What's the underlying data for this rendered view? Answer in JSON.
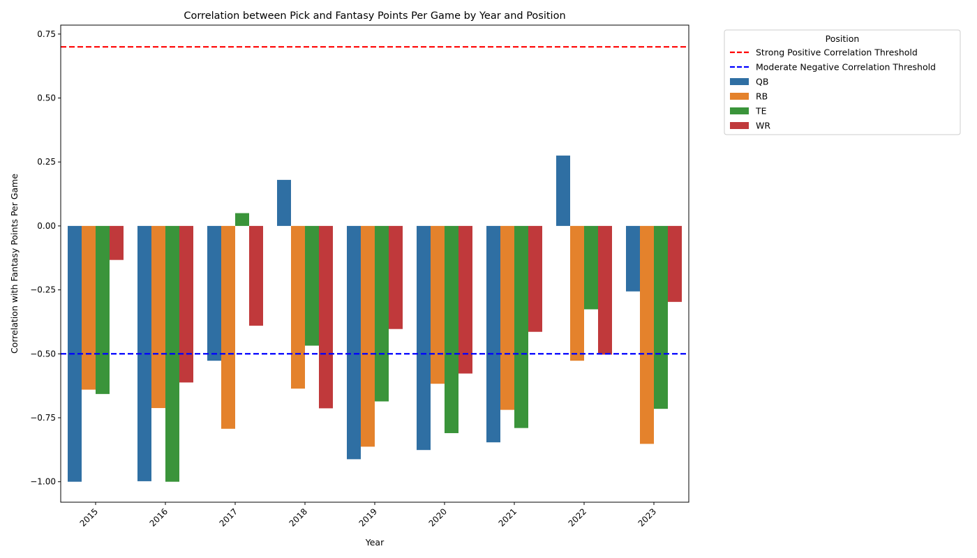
{
  "chart_data": {
    "type": "bar",
    "title": "Correlation between Pick and Fantasy Points Per Game by Year and Position",
    "xlabel": "Year",
    "ylabel": "Correlation with Fantasy Points Per Game",
    "ylim": [
      -1.08,
      0.785
    ],
    "grid": false,
    "categories": [
      "2015",
      "2016",
      "2017",
      "2018",
      "2019",
      "2020",
      "2021",
      "2022",
      "2023"
    ],
    "y_ticks": [
      {
        "value": 0.75,
        "label": "0.75"
      },
      {
        "value": 0.5,
        "label": "0.50"
      },
      {
        "value": 0.25,
        "label": "0.25"
      },
      {
        "value": 0.0,
        "label": "0.00"
      },
      {
        "value": -0.25,
        "label": "−0.25"
      },
      {
        "value": -0.5,
        "label": "−0.50"
      },
      {
        "value": -0.75,
        "label": "−0.75"
      },
      {
        "value": -1.0,
        "label": "−1.00"
      }
    ],
    "series": [
      {
        "name": "QB",
        "color": "#2f6fa3",
        "values": [
          -1.0,
          -0.998,
          -0.527,
          0.18,
          -0.912,
          -0.876,
          -0.846,
          0.275,
          -0.256
        ]
      },
      {
        "name": "RB",
        "color": "#e4822c",
        "values": [
          -0.64,
          -0.712,
          -0.793,
          -0.636,
          -0.863,
          -0.617,
          -0.719,
          -0.527,
          -0.852
        ]
      },
      {
        "name": "TE",
        "color": "#3a943a",
        "values": [
          -0.657,
          -1.0,
          0.05,
          -0.468,
          -0.686,
          -0.81,
          -0.79,
          -0.326,
          -0.715
        ]
      },
      {
        "name": "WR",
        "color": "#c0393b",
        "values": [
          -0.133,
          -0.612,
          -0.39,
          -0.713,
          -0.403,
          -0.577,
          -0.414,
          -0.503,
          -0.297
        ]
      }
    ],
    "reference_lines": [
      {
        "name": "Strong Positive Correlation Threshold",
        "value": 0.7,
        "color": "#ff0000",
        "style": "dashed"
      },
      {
        "name": "Moderate Negative Correlation Threshold",
        "value": -0.5,
        "color": "#0000ff",
        "style": "dashed"
      }
    ],
    "legend": {
      "title": "Position",
      "placement": "outside-top-right"
    }
  }
}
